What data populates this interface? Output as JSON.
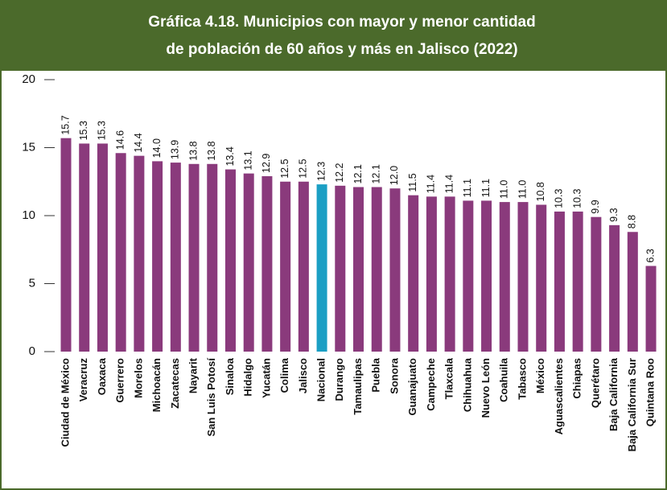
{
  "chart_data": {
    "type": "bar",
    "title": [
      "Gráfica 4.18. Municipios con mayor y menor cantidad",
      "de población de 60 años y más en Jalisco (2022)"
    ],
    "categories": [
      "Ciudad de México",
      "Veracruz",
      "Oaxaca",
      "Guerrero",
      "Morelos",
      "Michoacán",
      "Zacatecas",
      "Nayarit",
      "San Luis Potosí",
      "Sinaloa",
      "Hidalgo",
      "Yucatán",
      "Colima",
      "Jalisco",
      "Nacional",
      "Durango",
      "Tamaulipas",
      "Puebla",
      "Sonora",
      "Guanajuato",
      "Campeche",
      "Tlaxcala",
      "Chihuahua",
      "Nuevo León",
      "Coahuila",
      "Tabasco",
      "México",
      "Aguascalientes",
      "Chiapas",
      "Querétaro",
      "Baja California",
      "Baja California Sur",
      "Quintana Roo"
    ],
    "values": [
      15.7,
      15.3,
      15.3,
      14.6,
      14.4,
      14.0,
      13.9,
      13.8,
      13.8,
      13.4,
      13.1,
      12.9,
      12.5,
      12.5,
      12.3,
      12.2,
      12.1,
      12.1,
      12.0,
      11.5,
      11.4,
      11.4,
      11.1,
      11.1,
      11.0,
      11.0,
      10.8,
      10.3,
      10.3,
      9.9,
      9.3,
      8.8,
      6.3
    ],
    "value_labels": [
      "15.7",
      "15.3",
      "15.3",
      "14.6",
      "14.4",
      "14.0",
      "13.9",
      "13.8",
      "13.8",
      "13.4",
      "13.1",
      "12.9",
      "12.5",
      "12.5",
      "12.3",
      "12.2",
      "12.1",
      "12.1",
      "12.0",
      "11.5",
      "11.4",
      "11.4",
      "11.1",
      "11.1",
      "11.0",
      "11.0",
      "10.8",
      "10.3",
      "10.3",
      "9.9",
      "9.3",
      "8.8",
      "6.3"
    ],
    "colors": [
      "#8a3a7c",
      "#8a3a7c",
      "#8a3a7c",
      "#8a3a7c",
      "#8a3a7c",
      "#8a3a7c",
      "#8a3a7c",
      "#8a3a7c",
      "#8a3a7c",
      "#8a3a7c",
      "#8a3a7c",
      "#8a3a7c",
      "#8a3a7c",
      "#8a3a7c",
      "#1b9fc4",
      "#8a3a7c",
      "#8a3a7c",
      "#8a3a7c",
      "#8a3a7c",
      "#8a3a7c",
      "#8a3a7c",
      "#8a3a7c",
      "#8a3a7c",
      "#8a3a7c",
      "#8a3a7c",
      "#8a3a7c",
      "#8a3a7c",
      "#8a3a7c",
      "#8a3a7c",
      "#8a3a7c",
      "#8a3a7c",
      "#8a3a7c",
      "#8a3a7c"
    ],
    "ylim": [
      0,
      20
    ],
    "yticks": [
      0,
      5,
      10,
      15,
      20
    ],
    "grid": false
  }
}
